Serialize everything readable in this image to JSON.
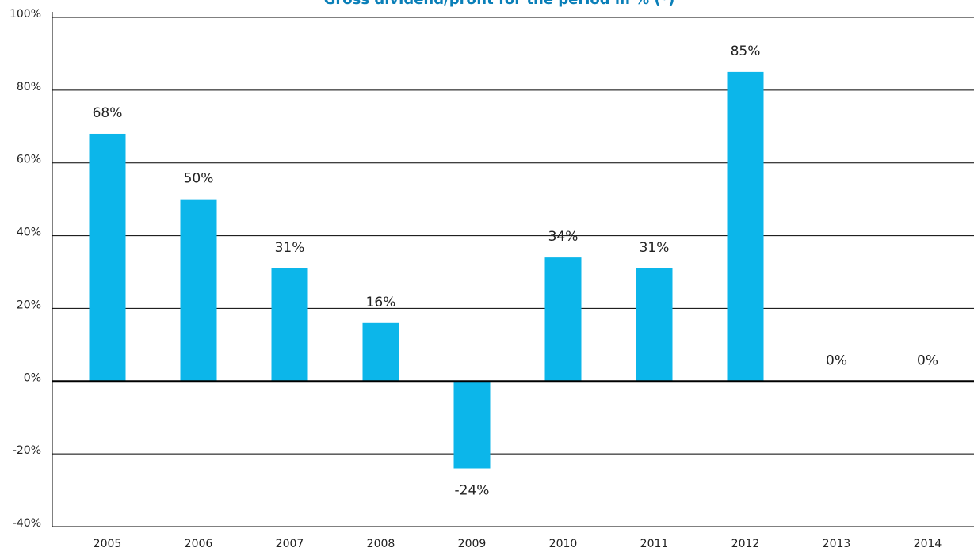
{
  "chart_data": {
    "type": "bar",
    "title": "Gross dividend/profit for the period in % (*)",
    "categories": [
      "2005",
      "2006",
      "2007",
      "2008",
      "2009",
      "2010",
      "2011",
      "2012",
      "2013",
      "2014"
    ],
    "values": [
      68,
      50,
      31,
      16,
      -24,
      34,
      31,
      85,
      0,
      0
    ],
    "value_labels": [
      "68%",
      "50%",
      "31%",
      "16%",
      "-24%",
      "34%",
      "31%",
      "85%",
      "0%",
      "0%"
    ],
    "color": "#0cb6ea",
    "ylim": [
      -40,
      100
    ],
    "yticks": [
      {
        "value": -40,
        "label": "-40%"
      },
      {
        "value": -20,
        "label": "-20%"
      },
      {
        "value": 0,
        "label": "0%"
      },
      {
        "value": 20,
        "label": "20%"
      },
      {
        "value": 40,
        "label": "40%"
      },
      {
        "value": 60,
        "label": "60%"
      },
      {
        "value": 80,
        "label": "80%"
      },
      {
        "value": 100,
        "label": "100%"
      }
    ],
    "grid": true
  }
}
